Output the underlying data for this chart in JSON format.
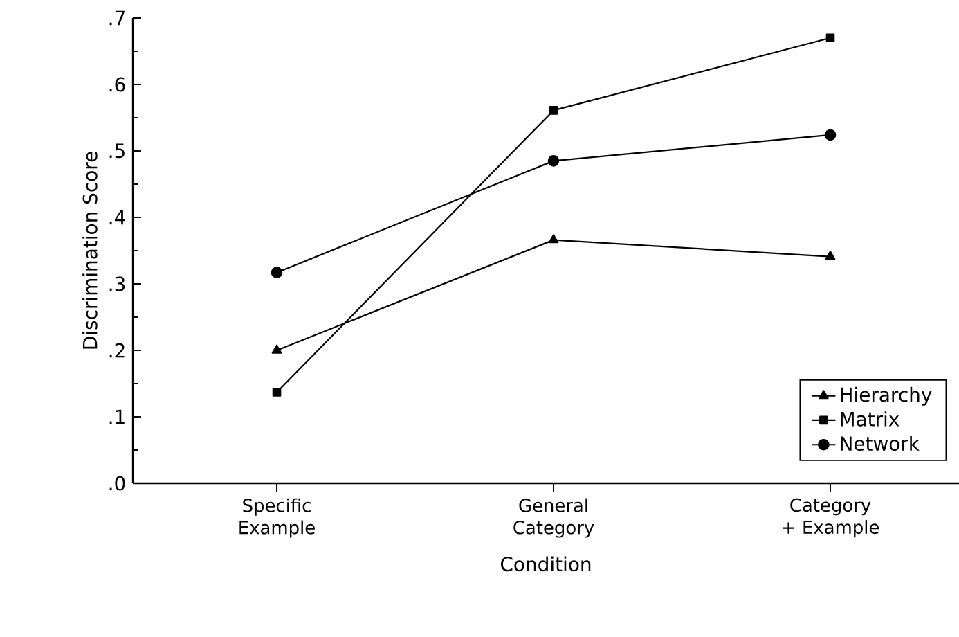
{
  "chart_data": {
    "type": "line",
    "xlabel": "Condition",
    "ylabel": "Discrimination Score",
    "categories": [
      "Specific Example",
      "General Category",
      "Category + Example"
    ],
    "series": [
      {
        "name": "Hierarchy",
        "color": "#000000",
        "marker": "triangle",
        "values": [
          0.2,
          0.366,
          0.341
        ]
      },
      {
        "name": "Matrix",
        "color": "#000000",
        "marker": "square",
        "values": [
          0.137,
          0.561,
          0.67
        ]
      },
      {
        "name": "Network",
        "color": "#000000",
        "marker": "circle",
        "values": [
          0.317,
          0.485,
          0.524
        ]
      }
    ],
    "ylim": [
      0,
      0.7
    ],
    "yticks": [
      {
        "value": 0,
        "label": ".0"
      },
      {
        "value": 0.1,
        "label": ".1"
      },
      {
        "value": 0.2,
        "label": ".2"
      },
      {
        "value": 0.3,
        "label": ".3"
      },
      {
        "value": 0.4,
        "label": ".4"
      },
      {
        "value": 0.5,
        "label": ".5"
      },
      {
        "value": 0.6,
        "label": ".6"
      },
      {
        "value": 0.7,
        "label": ".7"
      }
    ],
    "grid": false,
    "legend": "bottom right",
    "line_style": "solid"
  }
}
